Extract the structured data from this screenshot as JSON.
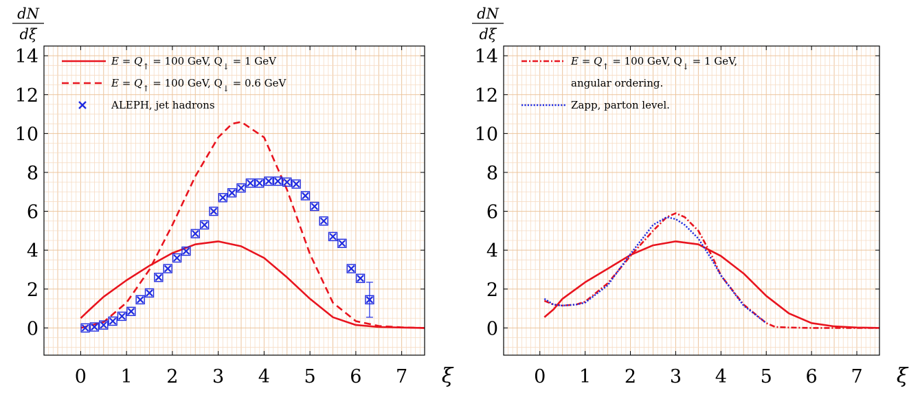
{
  "colors": {
    "red": "#e8141e",
    "blue": "#1f2be0",
    "grid_minor": "#f6dcc4",
    "grid_major": "#ecc49c"
  },
  "chart_data": [
    {
      "type": "line",
      "xlabel": "ξ",
      "ylabel_num": "dN",
      "ylabel_den": "dξ",
      "xlim": [
        -0.8,
        7.5
      ],
      "ylim": [
        -1.4,
        14.5
      ],
      "xticks": [
        0,
        1,
        2,
        3,
        4,
        5,
        6,
        7
      ],
      "yticks": [
        0,
        2,
        4,
        6,
        8,
        10,
        12,
        14
      ],
      "grid": true,
      "legend_position": "top-left",
      "series": [
        {
          "name": "E = Q↑ = 100 GeV, Q↓ = 1 GeV",
          "style": "solid",
          "color": "#e8141e",
          "x": [
            0.0,
            0.2,
            0.5,
            1.0,
            1.5,
            2.0,
            2.5,
            3.0,
            3.5,
            4.0,
            4.5,
            5.0,
            5.5,
            6.0,
            6.5,
            7.0,
            7.5
          ],
          "y": [
            0.5,
            0.95,
            1.6,
            2.45,
            3.2,
            3.85,
            4.3,
            4.45,
            4.2,
            3.6,
            2.6,
            1.5,
            0.55,
            0.15,
            0.05,
            0.02,
            0.0
          ]
        },
        {
          "name": "E = Q↑ = 100 GeV, Q↓ = 0.6 GeV",
          "style": "dashed",
          "color": "#e8141e",
          "x": [
            0.0,
            0.5,
            1.0,
            1.5,
            2.0,
            2.5,
            3.0,
            3.3,
            3.5,
            4.0,
            4.5,
            5.0,
            5.5,
            6.0,
            6.5,
            7.0,
            7.5
          ],
          "y": [
            0.0,
            0.3,
            1.3,
            3.0,
            5.3,
            7.8,
            9.8,
            10.5,
            10.6,
            9.8,
            7.1,
            3.8,
            1.3,
            0.35,
            0.1,
            0.03,
            0.0
          ]
        },
        {
          "name": "ALEPH, jet hadrons",
          "style": "marker",
          "color": "#1f2be0",
          "x": [
            0.1,
            0.3,
            0.5,
            0.7,
            0.9,
            1.1,
            1.3,
            1.5,
            1.7,
            1.9,
            2.1,
            2.3,
            2.5,
            2.7,
            2.9,
            3.1,
            3.3,
            3.5,
            3.7,
            3.9,
            4.1,
            4.3,
            4.5,
            4.7,
            4.9,
            5.1,
            5.3,
            5.5,
            5.7,
            5.9,
            6.1,
            6.3
          ],
          "y": [
            0.0,
            0.05,
            0.15,
            0.35,
            0.6,
            0.85,
            1.45,
            1.8,
            2.6,
            3.05,
            3.6,
            3.95,
            4.85,
            5.3,
            6.0,
            6.7,
            6.95,
            7.2,
            7.45,
            7.45,
            7.55,
            7.55,
            7.5,
            7.4,
            6.8,
            6.25,
            5.5,
            4.7,
            4.35,
            3.05,
            2.55,
            1.45
          ],
          "yerr": [
            0.1,
            0.1,
            0.1,
            0.1,
            0.1,
            0.1,
            0.15,
            0.15,
            0.15,
            0.15,
            0.15,
            0.15,
            0.2,
            0.2,
            0.2,
            0.2,
            0.2,
            0.2,
            0.2,
            0.2,
            0.2,
            0.2,
            0.2,
            0.2,
            0.2,
            0.2,
            0.2,
            0.2,
            0.2,
            0.2,
            0.2,
            0.9
          ]
        }
      ]
    },
    {
      "type": "line",
      "xlabel": "ξ",
      "ylabel_num": "dN",
      "ylabel_den": "dξ",
      "xlim": [
        -0.8,
        7.5
      ],
      "ylim": [
        -1.4,
        14.5
      ],
      "xticks": [
        0,
        1,
        2,
        3,
        4,
        5,
        6,
        7
      ],
      "yticks": [
        0,
        2,
        4,
        6,
        8,
        10,
        12,
        14
      ],
      "grid": true,
      "legend_position": "top-left",
      "series": [
        {
          "name": "",
          "style": "solid",
          "color": "#e8141e",
          "x": [
            0.1,
            0.3,
            0.5,
            1.0,
            1.5,
            2.0,
            2.5,
            3.0,
            3.5,
            4.0,
            4.5,
            5.0,
            5.5,
            6.0,
            6.5,
            7.0,
            7.5
          ],
          "y": [
            0.55,
            0.95,
            1.5,
            2.35,
            3.05,
            3.75,
            4.25,
            4.45,
            4.3,
            3.7,
            2.8,
            1.65,
            0.75,
            0.25,
            0.08,
            0.02,
            0.0
          ]
        },
        {
          "name": "E = Q↑ = 100 GeV, Q↓ = 1 GeV, angular ordering.",
          "style": "dashdot",
          "color": "#e8141e",
          "x": [
            0.1,
            0.3,
            0.5,
            0.8,
            1.0,
            1.5,
            2.0,
            2.5,
            2.8,
            3.0,
            3.2,
            3.5,
            3.8,
            4.0,
            4.5,
            5.0,
            5.2,
            5.5,
            6.0,
            6.5,
            7.0,
            7.5
          ],
          "y": [
            1.4,
            1.2,
            1.15,
            1.2,
            1.35,
            2.3,
            3.7,
            5.0,
            5.7,
            5.9,
            5.7,
            5.0,
            3.7,
            2.7,
            1.2,
            0.25,
            0.05,
            0.02,
            0.0,
            0.0,
            0.0,
            0.0
          ]
        },
        {
          "name": "Zapp, parton level.",
          "style": "dotted",
          "color": "#1f2be0",
          "x": [
            0.1,
            0.3,
            0.5,
            0.8,
            1.0,
            1.5,
            2.0,
            2.5,
            2.8,
            3.0,
            3.2,
            3.5,
            3.8,
            4.0,
            4.5,
            5.0
          ],
          "y": [
            1.5,
            1.2,
            1.15,
            1.2,
            1.3,
            2.2,
            3.8,
            5.3,
            5.7,
            5.6,
            5.3,
            4.6,
            3.5,
            2.7,
            1.15,
            0.25
          ]
        }
      ]
    }
  ],
  "legends": [
    {
      "items": [
        {
          "style": "solid",
          "math": true,
          "eq_lhs": "E = Q",
          "arrow1": "↑",
          "mid": " = 100 GeV, Q",
          "arrow2": "↓",
          "tail": " = 1 GeV"
        },
        {
          "style": "dashed",
          "math": true,
          "eq_lhs": "E = Q",
          "arrow1": "↑",
          "mid": " = 100 GeV, Q",
          "arrow2": "↓",
          "tail": " = 0.6 GeV"
        },
        {
          "style": "marker",
          "math": false,
          "text": "ALEPH, jet hadrons"
        }
      ]
    },
    {
      "items": [
        {
          "style": "dashdot",
          "math": true,
          "eq_lhs": "E = Q",
          "arrow1": "↑",
          "mid": " = 100 GeV, Q",
          "arrow2": "↓",
          "tail": " = 1 GeV,"
        },
        {
          "style": "none",
          "math": false,
          "text": "angular ordering."
        },
        {
          "style": "dotted",
          "math": false,
          "text": "Zapp, parton level."
        }
      ]
    }
  ]
}
